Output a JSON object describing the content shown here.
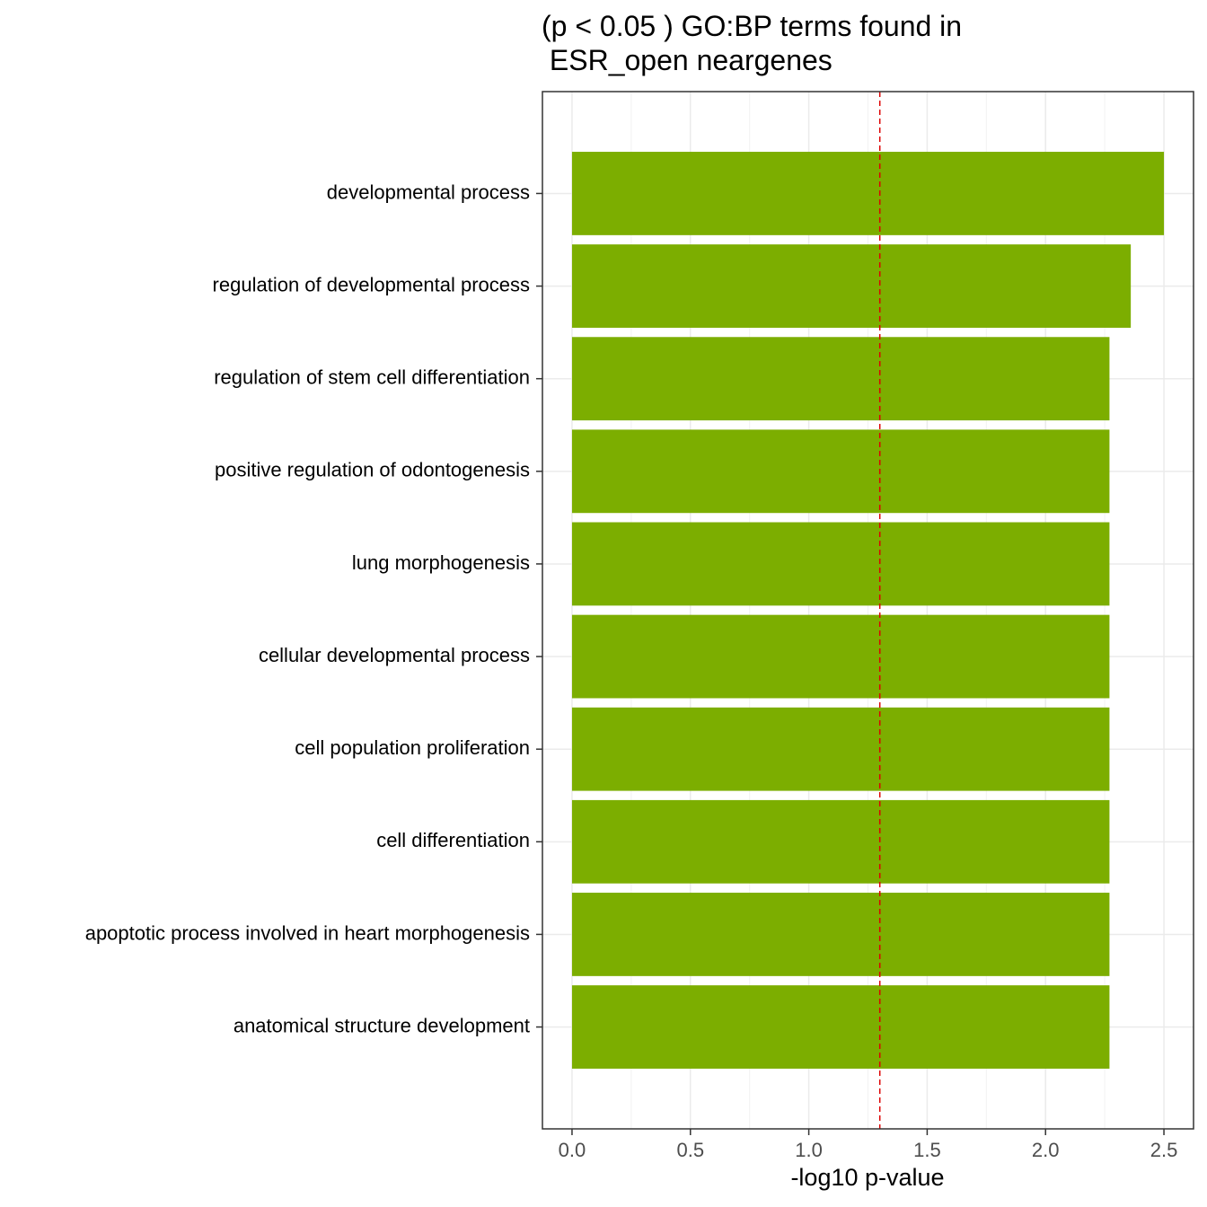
{
  "chart_data": {
    "type": "barh",
    "title": "(p < 0.05 ) GO:BP terms found in\n ESR_open neargenes",
    "x_label": "-log10 p-value",
    "categories": [
      "developmental process",
      "regulation of developmental process",
      "regulation of stem cell differentiation",
      "positive regulation of odontogenesis",
      "lung morphogenesis",
      "cellular developmental process",
      "cell population proliferation",
      "cell differentiation",
      "apoptotic process involved in heart morphogenesis",
      "anatomical structure development"
    ],
    "values": [
      2.5,
      2.36,
      2.27,
      2.27,
      2.27,
      2.27,
      2.27,
      2.27,
      2.27,
      2.27
    ],
    "color": "#7cae00",
    "threshold": 1.3,
    "threshold_color": "#dd0000",
    "xlim": [
      -0.125,
      2.625
    ],
    "xticks": [
      {
        "value": 0,
        "label": "0.0"
      },
      0.5,
      {
        "value": 1,
        "label": "1.0"
      },
      1.5,
      {
        "value": 2,
        "label": "2.0"
      },
      2.5
    ],
    "xminor": [
      0.25,
      0.75,
      1.25,
      1.75,
      2.25
    ],
    "grid": true
  }
}
